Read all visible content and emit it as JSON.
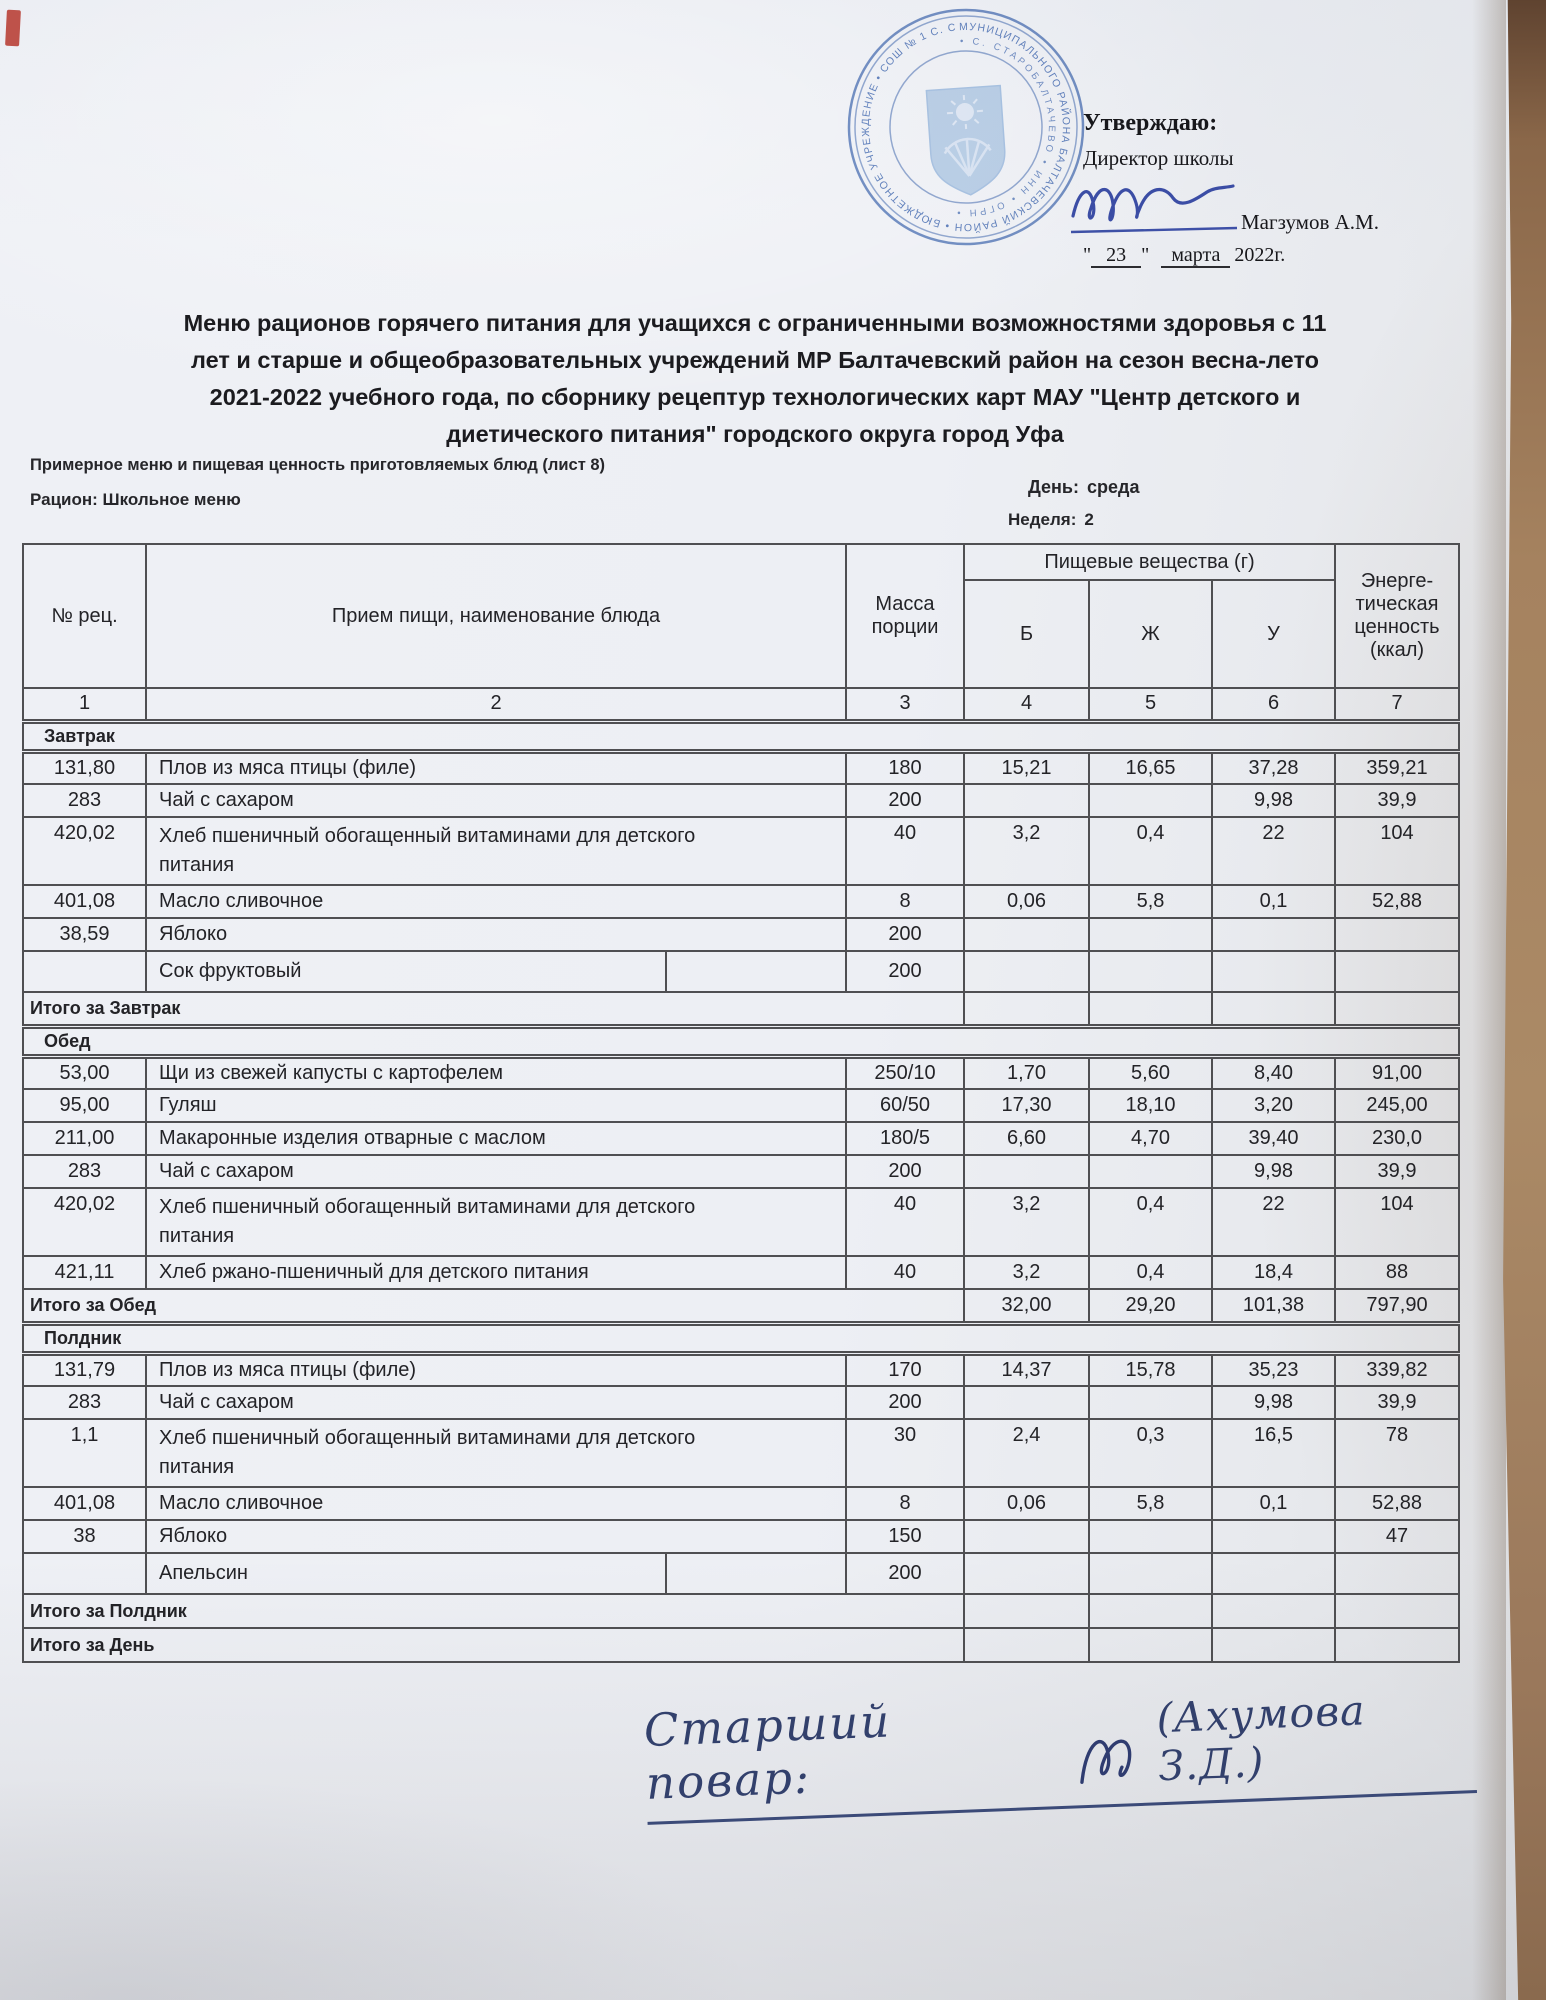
{
  "colors": {
    "paper": "#edeff4",
    "stamp_ink": "#4a72b8",
    "pen_ink": "#2b3f9e",
    "scan_edge": "#9a785b",
    "table_border": "#4f4f52"
  },
  "stamp": {
    "outer_text": "МУНИЦИПАЛЬНОГО РАЙОНА БАЛТАЧЕВСКИЙ РАЙОН • БЮДЖЕТНОЕ УЧРЕЖДЕНИЕ • СОШ № 1 С. СТАРОБАЛТАЧЕВО",
    "inner_text": "• С. СТАРОБАЛТАЧЕВО • ИНН • ОГРН •"
  },
  "approval": {
    "approve_label": "Утверждаю:",
    "role": "Директор школы",
    "name": "Магзумов А.М.",
    "quote_open": "\"",
    "day": "23",
    "quote_close": "\"",
    "month": "марта",
    "year": "2022г."
  },
  "title_lines": [
    "Меню рационов горячего питания для учащихся с ограниченными возможностями здоровья с 11",
    "лет и старше  и  общеобразовательных учреждений МР Балтачевский район  на сезон весна-лето",
    "2021-2022 учебного года, по сборнику рецептур технологических карт  МАУ \"Центр детского и",
    "диетического питания\"  городского округа город Уфа"
  ],
  "subheader": {
    "note": "Примерное меню и пищевая ценность приготовляемых блюд (лист 8)",
    "ration": "Рацион: Школьное меню",
    "day_label": "День:",
    "day_value": "среда",
    "week_label": "Неделя:",
    "week_value": "2"
  },
  "table": {
    "headers": {
      "num": "№ рец.",
      "dish": "Прием пищи, наименование блюда",
      "mass": "Масса порции",
      "nutrients_group": "Пищевые вещества (г)",
      "b": "Б",
      "zh": "Ж",
      "u": "У",
      "energy": "Энерге-тическая ценность (ккал)"
    },
    "col_numbers": [
      "1",
      "2",
      "3",
      "4",
      "5",
      "6",
      "7"
    ],
    "rows": [
      {
        "type": "section",
        "label": "Завтрак"
      },
      {
        "type": "dish",
        "num": "131,80",
        "name": "Плов из мяса птицы (филе)",
        "mass": "180",
        "b": "15,21",
        "zh": "16,65",
        "u": "37,28",
        "kcal": "359,21"
      },
      {
        "type": "dish",
        "num": "283",
        "name": "Чай с сахаром",
        "mass": "200",
        "b": "",
        "zh": "",
        "u": "9,98",
        "kcal": "39,9"
      },
      {
        "type": "dish",
        "num": "420,02",
        "name": "Хлеб пшеничный обогащенный витаминами для детского\nпитания",
        "mass": "40",
        "b": "3,2",
        "zh": "0,4",
        "u": "22",
        "kcal": "104",
        "tall": true
      },
      {
        "type": "dish",
        "num": "401,08",
        "name": "Масло сливочное",
        "mass": "8",
        "b": "0,06",
        "zh": "5,8",
        "u": "0,1",
        "kcal": "52,88"
      },
      {
        "type": "dish",
        "num": "38,59",
        "name": "Яблоко",
        "mass": "200",
        "b": "",
        "zh": "",
        "u": "",
        "kcal": ""
      },
      {
        "type": "dish",
        "num": "",
        "name": "Сок фруктовый",
        "mass": "200",
        "b": "",
        "zh": "",
        "u": "",
        "kcal": "",
        "split": true
      },
      {
        "type": "total",
        "label": "Итого за Завтрак",
        "b": "",
        "zh": "",
        "u": "",
        "kcal": ""
      },
      {
        "type": "section",
        "label": "Обед"
      },
      {
        "type": "dish",
        "num": "53,00",
        "name": "Щи из свежей капусты с картофелем",
        "mass": "250/10",
        "b": "1,70",
        "zh": "5,60",
        "u": "8,40",
        "kcal": "91,00"
      },
      {
        "type": "dish",
        "num": "95,00",
        "name": "Гуляш",
        "mass": "60/50",
        "b": "17,30",
        "zh": "18,10",
        "u": "3,20",
        "kcal": "245,00"
      },
      {
        "type": "dish",
        "num": "211,00",
        "name": "Макаронные изделия отварные с маслом",
        "mass": "180/5",
        "b": "6,60",
        "zh": "4,70",
        "u": "39,40",
        "kcal": "230,0"
      },
      {
        "type": "dish",
        "num": "283",
        "name": "Чай с сахаром",
        "mass": "200",
        "b": "",
        "zh": "",
        "u": "9,98",
        "kcal": "39,9"
      },
      {
        "type": "dish",
        "num": "420,02",
        "name": "Хлеб пшеничный обогащенный витаминами для детского\nпитания",
        "mass": "40",
        "b": "3,2",
        "zh": "0,4",
        "u": "22",
        "kcal": "104",
        "tall": true
      },
      {
        "type": "dish",
        "num": "421,11",
        "name": "Хлеб ржано-пшеничный для детского питания",
        "mass": "40",
        "b": "3,2",
        "zh": "0,4",
        "u": "18,4",
        "kcal": "88"
      },
      {
        "type": "total",
        "label": "Итого за Обед",
        "b": "32,00",
        "zh": "29,20",
        "u": "101,38",
        "kcal": "797,90"
      },
      {
        "type": "section",
        "label": "Полдник"
      },
      {
        "type": "dish",
        "num": "131,79",
        "name": "Плов из мяса птицы (филе)",
        "mass": "170",
        "b": "14,37",
        "zh": "15,78",
        "u": "35,23",
        "kcal": "339,82"
      },
      {
        "type": "dish",
        "num": "283",
        "name": "Чай с сахаром",
        "mass": "200",
        "b": "",
        "zh": "",
        "u": "9,98",
        "kcal": "39,9"
      },
      {
        "type": "dish",
        "num": "1,1",
        "name": "Хлеб пшеничный обогащенный витаминами для детского\nпитания",
        "mass": "30",
        "b": "2,4",
        "zh": "0,3",
        "u": "16,5",
        "kcal": "78",
        "tall": true
      },
      {
        "type": "dish",
        "num": "401,08",
        "name": "Масло сливочное",
        "mass": "8",
        "b": "0,06",
        "zh": "5,8",
        "u": "0,1",
        "kcal": "52,88"
      },
      {
        "type": "dish",
        "num": "38",
        "name": "Яблоко",
        "mass": "150",
        "b": "",
        "zh": "",
        "u": "",
        "kcal": "47"
      },
      {
        "type": "dish",
        "num": "",
        "name": "Апельсин",
        "mass": "200",
        "b": "",
        "zh": "",
        "u": "",
        "kcal": "",
        "split": true
      },
      {
        "type": "total",
        "label": "Итого за Полдник",
        "b": "",
        "zh": "",
        "u": "",
        "kcal": ""
      },
      {
        "type": "total",
        "label": "Итого за День",
        "b": "",
        "zh": "",
        "u": "",
        "kcal": ""
      }
    ]
  },
  "footer": {
    "chef_label": "Старший повар:",
    "chef_name": "(Ахумова З.Д.)"
  }
}
